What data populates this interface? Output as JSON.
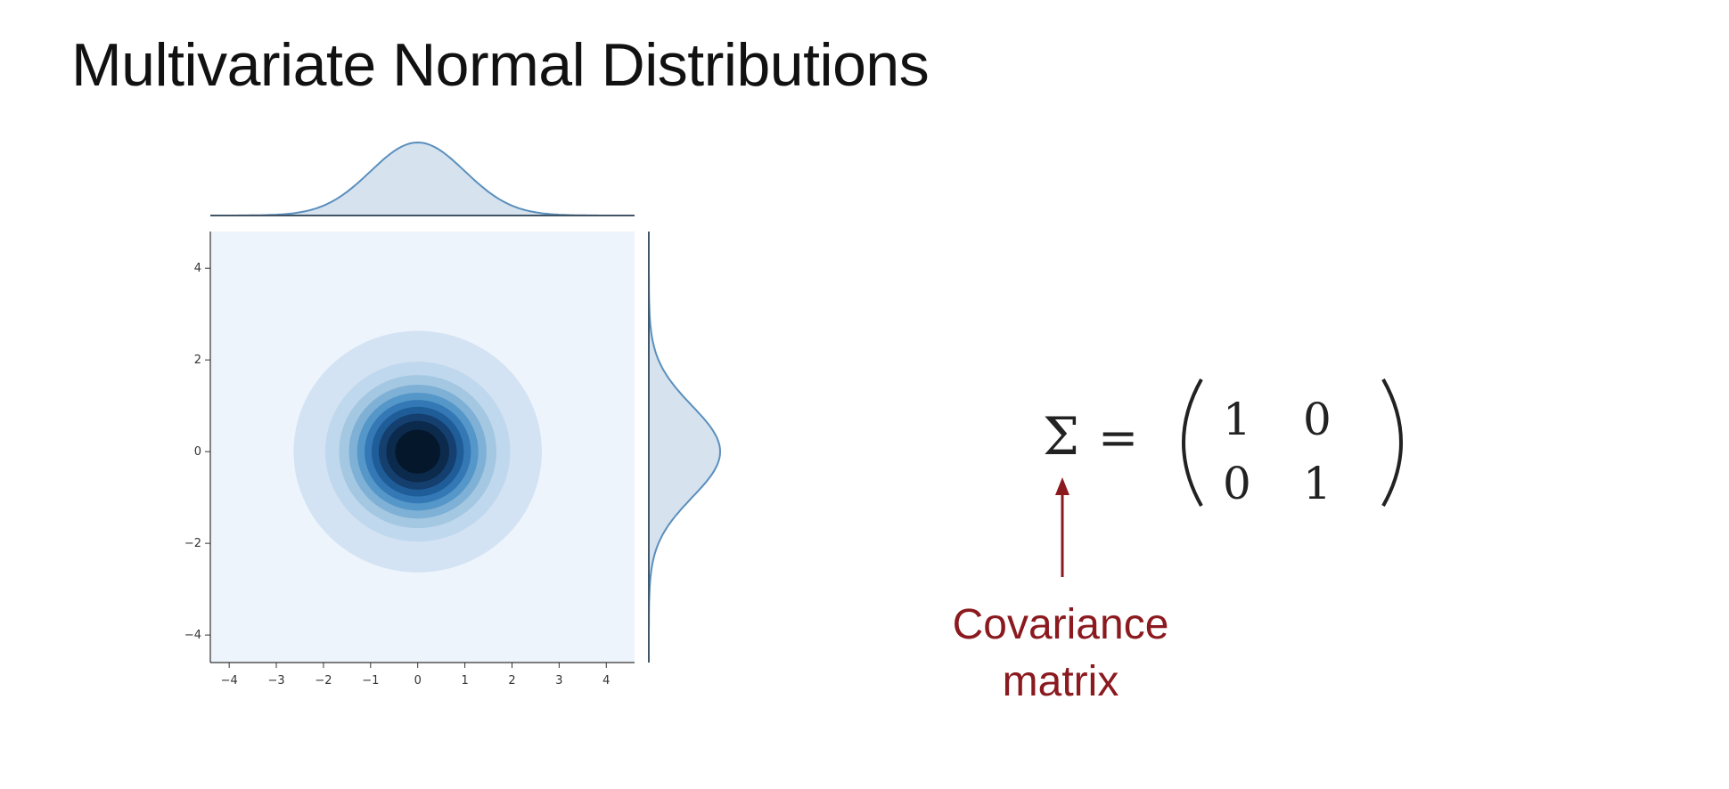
{
  "slide": {
    "title": "Multivariate Normal Distributions"
  },
  "chart_data": {
    "type": "heatmap",
    "kind": "bivariate kde jointplot with marginal densities",
    "title": "",
    "xlabel": "",
    "ylabel": "",
    "xlim": [
      -4.4,
      4.6
    ],
    "ylim": [
      -4.6,
      4.8
    ],
    "x_ticks": [
      -4,
      -3,
      -2,
      -1,
      0,
      1,
      2,
      3,
      4
    ],
    "y_ticks": [
      -4,
      -2,
      0,
      2,
      4
    ],
    "x_tick_labels": [
      "−4",
      "−3",
      "−2",
      "−1",
      "0",
      "1",
      "2",
      "3",
      "4"
    ],
    "y_tick_labels": [
      "−4",
      "−2",
      "0",
      "2",
      "4"
    ],
    "mean": [
      0,
      0
    ],
    "covariance": [
      [
        1,
        0
      ],
      [
        0,
        1
      ]
    ],
    "contour_levels": 10,
    "contour_colors": [
      "#eef4fb",
      "#d3e3f3",
      "#c0d8ee",
      "#a4c8e2",
      "#7fb0d6",
      "#5497c8",
      "#3478b5",
      "#1f5d99",
      "#143f6f",
      "#0b2a4c",
      "#05172b"
    ],
    "marginal_fill": "#d6e2ee",
    "marginal_line": "#5a8fbd",
    "grid": false
  },
  "formula": {
    "symbol": "Σ",
    "equals": "=",
    "matrix": [
      [
        "1",
        "0"
      ],
      [
        "0",
        "1"
      ]
    ]
  },
  "annotation": {
    "line1": "Covariance",
    "line2": "matrix",
    "color": "#8b1a1f"
  }
}
